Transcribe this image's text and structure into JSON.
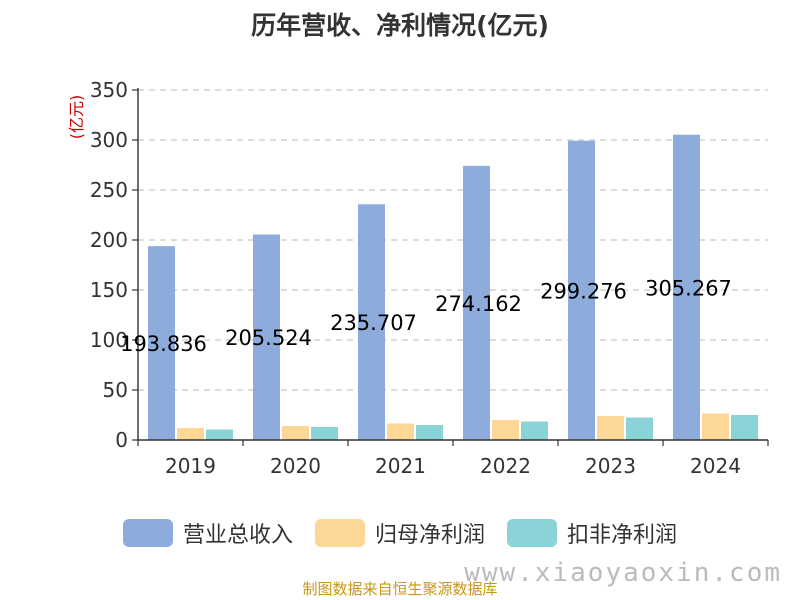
{
  "chart_data": {
    "type": "bar",
    "title": "历年营收、净利情况(亿元)",
    "ylabel": "(亿元)",
    "categories": [
      "2019",
      "2020",
      "2021",
      "2022",
      "2023",
      "2024"
    ],
    "ylim": [
      0,
      350
    ],
    "yticks": [
      "0",
      "50",
      "100",
      "150",
      "200",
      "250",
      "300",
      "350"
    ],
    "grid": true,
    "legend_position": "bottom",
    "series": [
      {
        "name": "营业总收入",
        "color": "#8eacdb",
        "values": [
          193.836,
          205.524,
          235.707,
          274.162,
          299.276,
          305.267
        ],
        "labels": [
          "193.836",
          "205.524",
          "235.707",
          "274.162",
          "299.276",
          "305.267"
        ]
      },
      {
        "name": "归母净利润",
        "color": "#fdd795",
        "values": [
          12,
          14,
          16.5,
          20,
          24,
          26.5
        ]
      },
      {
        "name": "扣非净利润",
        "color": "#8ad4d8",
        "values": [
          10.5,
          13,
          15,
          18.5,
          22.5,
          25
        ]
      }
    ]
  },
  "footer": {
    "source": "制图数据来自恒生聚源数据库",
    "watermark": "www.xiaoyaoxin.com"
  }
}
